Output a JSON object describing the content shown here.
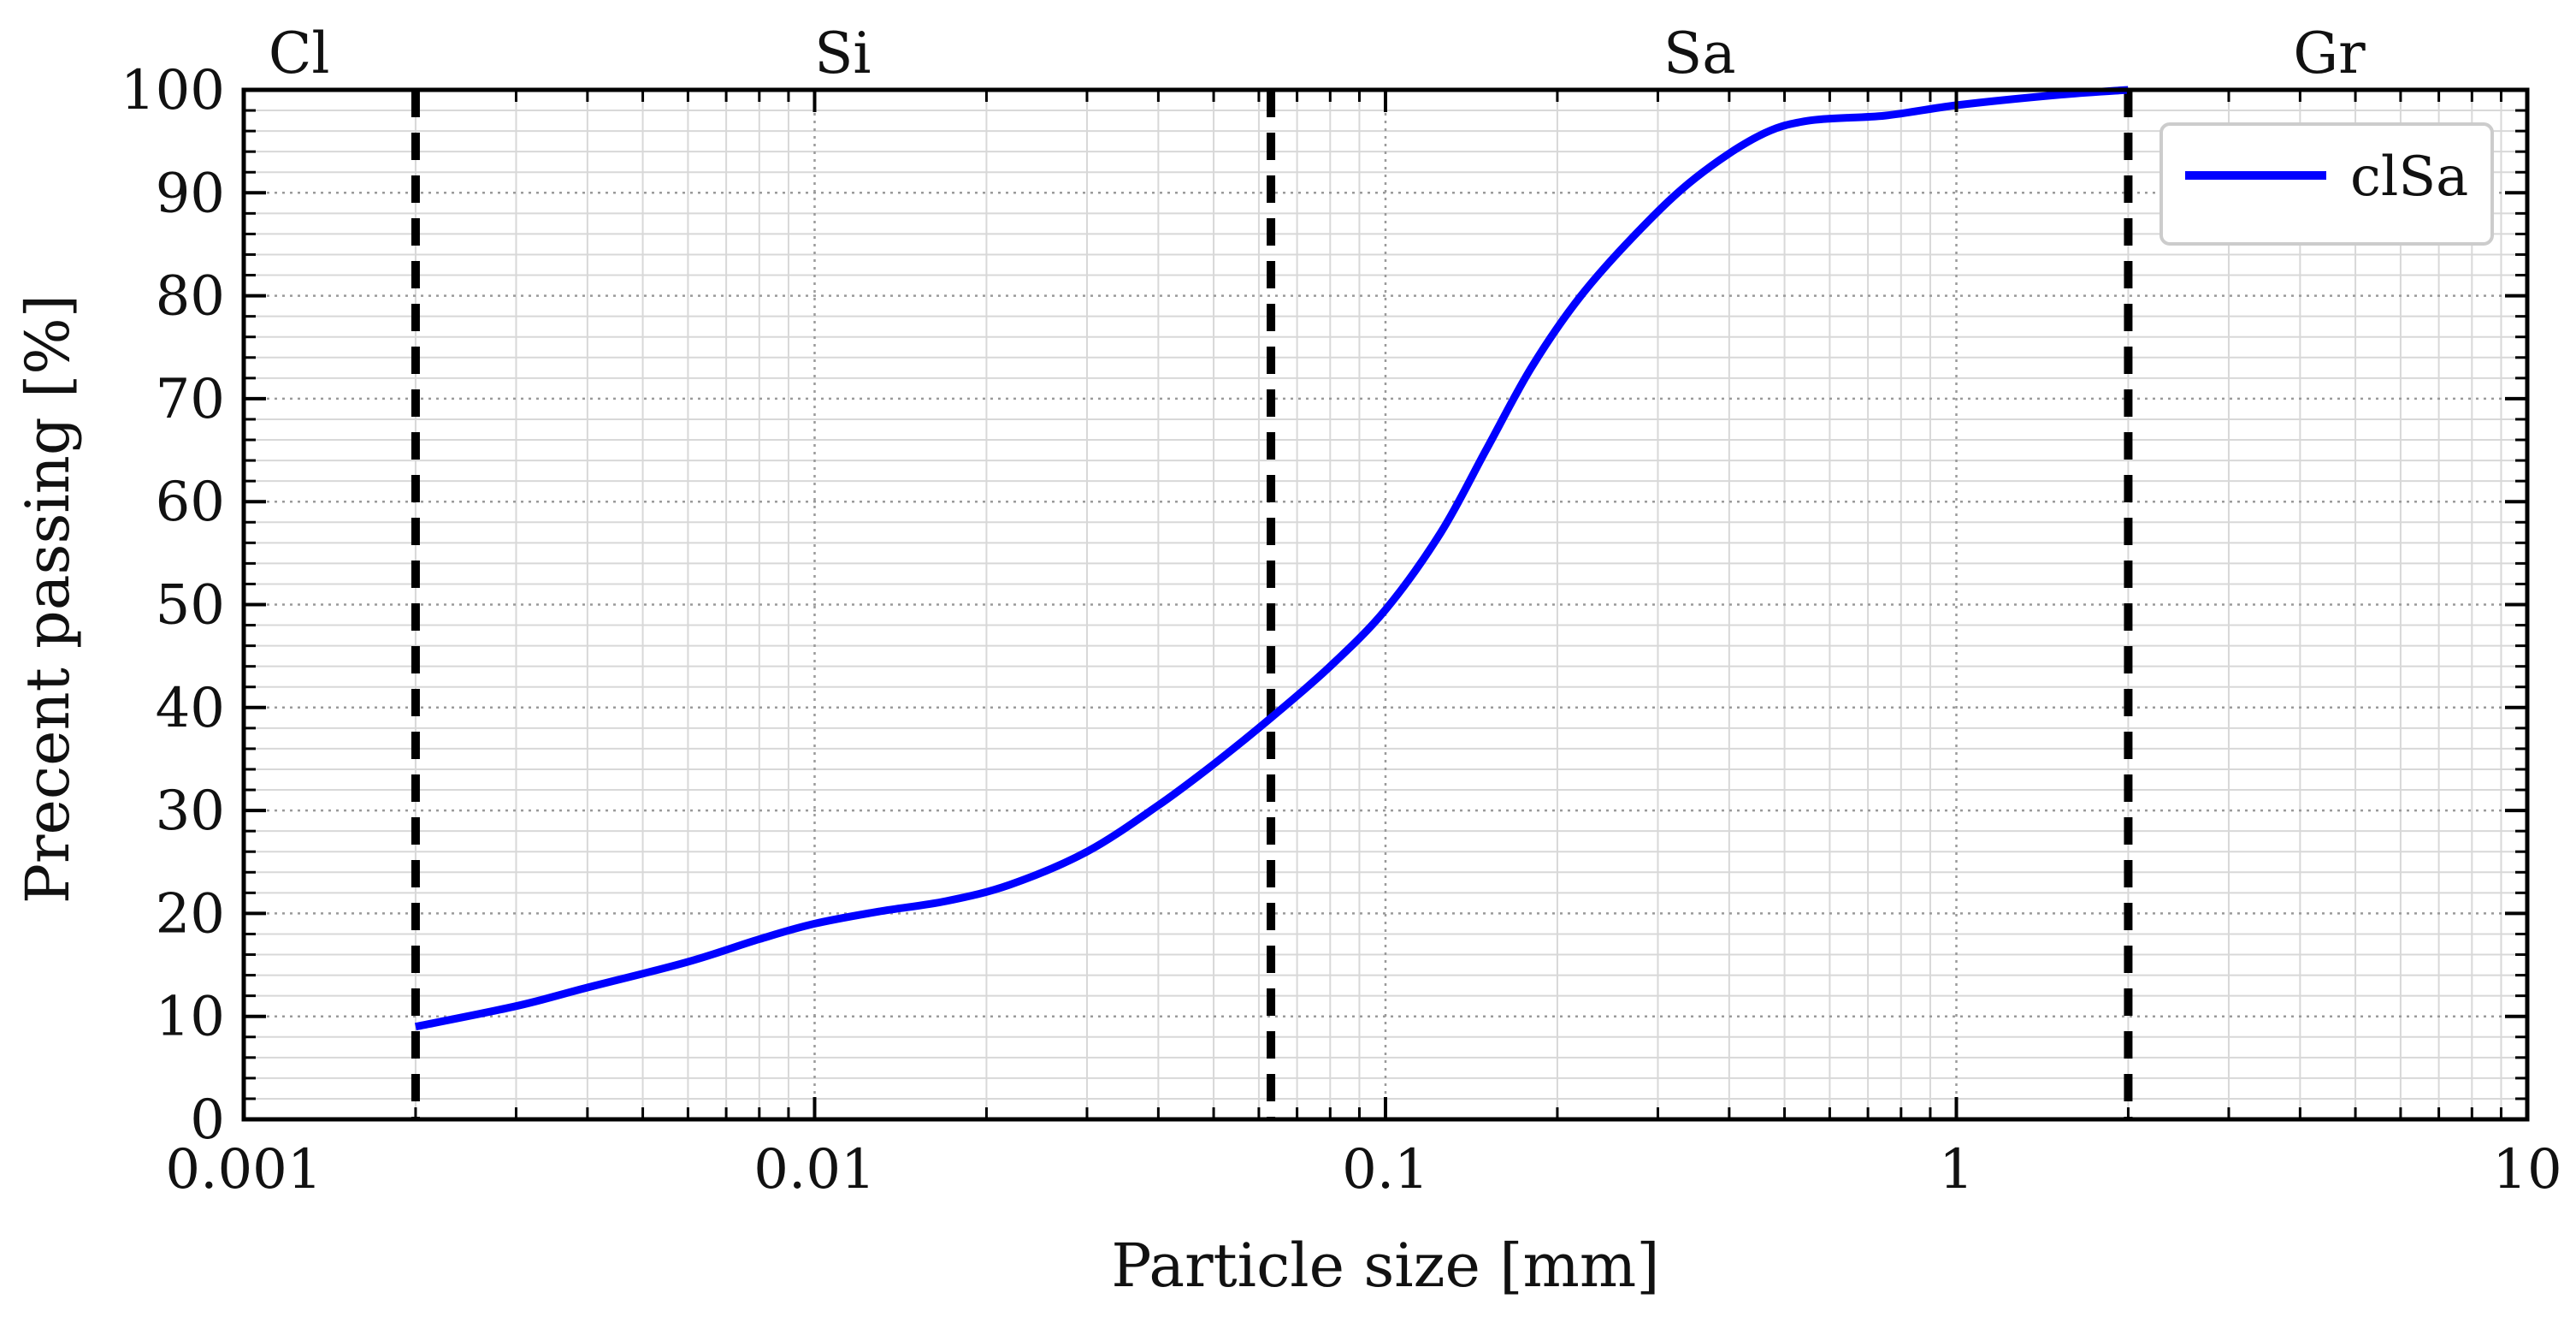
{
  "chart_data": {
    "type": "line",
    "title": "",
    "xlabel": "Particle size [mm]",
    "ylabel": "Precent passing [%]",
    "xscale": "log",
    "xlim": [
      0.001,
      10
    ],
    "ylim": [
      0,
      100
    ],
    "grid": true,
    "legend_position": "top-right",
    "x_tick_labels": [
      "0.001",
      "0.01",
      "0.1",
      "1",
      "10"
    ],
    "x_tick_values": [
      0.001,
      0.01,
      0.1,
      1,
      10
    ],
    "y_tick_labels": [
      "0",
      "10",
      "20",
      "30",
      "40",
      "50",
      "60",
      "70",
      "80",
      "90",
      "100"
    ],
    "y_tick_values": [
      0,
      10,
      20,
      30,
      40,
      50,
      60,
      70,
      80,
      90,
      100
    ],
    "zone_boundaries": [
      0.002,
      0.063,
      2.0
    ],
    "zones": [
      {
        "label": "Cl",
        "x": 0.00125
      },
      {
        "label": "Si",
        "x": 0.0112
      },
      {
        "label": "Sa",
        "x": 0.355
      },
      {
        "label": "Gr",
        "x": 4.5
      }
    ],
    "series": [
      {
        "name": "clSa",
        "color": "#0000ff",
        "x": [
          0.002,
          0.003,
          0.004,
          0.006,
          0.008,
          0.01,
          0.013,
          0.017,
          0.022,
          0.03,
          0.04,
          0.05,
          0.063,
          0.08,
          0.1,
          0.125,
          0.15,
          0.18,
          0.22,
          0.28,
          0.35,
          0.45,
          0.55,
          0.75,
          1.0,
          1.5,
          2.0
        ],
        "values": [
          9,
          11,
          12.8,
          15.3,
          17.5,
          19,
          20.2,
          21.2,
          22.8,
          26,
          30.5,
          34.5,
          39,
          44,
          49.5,
          57,
          65,
          73,
          80,
          86.5,
          91.5,
          95.5,
          97,
          97.5,
          98.5,
          99.5,
          100
        ]
      }
    ]
  },
  "colors": {
    "series": "#0000ff",
    "boundary": "#000000",
    "major_grid": "#9a9a9a",
    "minor_grid": "#d8d8d8"
  }
}
